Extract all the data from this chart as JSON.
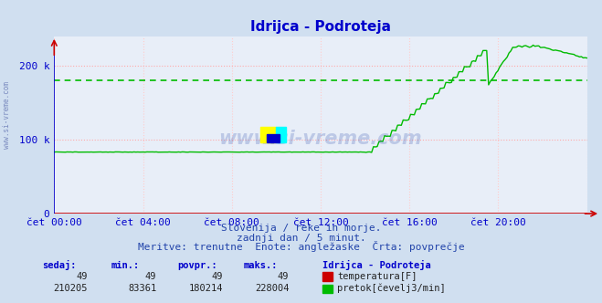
{
  "title": "Idrijca - Podroteja",
  "bg_color": "#d0dff0",
  "plot_bg_color": "#e8eef8",
  "title_color": "#0000cc",
  "axis_color": "#cc0000",
  "grid_color_h": "#ffaaaa",
  "grid_color_v": "#ffcccc",
  "flow_color": "#00bb00",
  "temp_color": "#cc0000",
  "avg_line_color": "#00bb00",
  "avg_value": 180214,
  "y_max": 228004,
  "y_axis_max": 240000,
  "yticks": [
    0,
    100000,
    200000
  ],
  "ytick_labels": [
    "0",
    "100 k",
    "200 k"
  ],
  "xtick_labels": [
    "čet 00:00",
    "čet 04:00",
    "čet 08:00",
    "čet 12:00",
    "čet 16:00",
    "čet 20:00"
  ],
  "subtitle1": "Slovenija / reke in morje.",
  "subtitle2": "zadnji dan / 5 minut.",
  "subtitle3": "Meritve: trenutne  Enote: angležaske  Črta: povprečje",
  "footer_label1": "sedaj:",
  "footer_label2": "min.:",
  "footer_label3": "povpr.:",
  "footer_label4": "maks.:",
  "footer_label5": "Idrijca - Podroteja",
  "temp_sedaj": "49",
  "temp_min": "49",
  "temp_povpr": "49",
  "temp_maks": "49",
  "flow_sedaj": "210205",
  "flow_min": "83361",
  "flow_povpr": "180214",
  "flow_maks": "228004",
  "temp_legend": "temperatura[F]",
  "flow_legend": "pretok[čevelj3/min]",
  "watermark": "www.si-vreme.com",
  "n_points": 288
}
